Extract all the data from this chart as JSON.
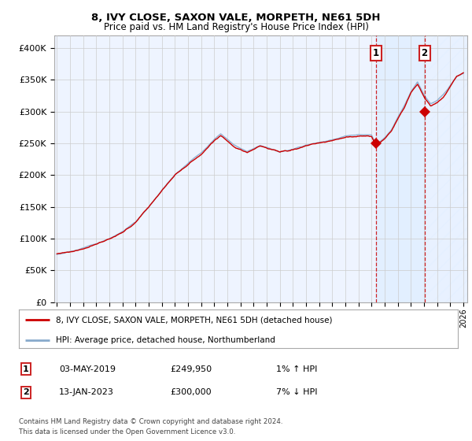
{
  "title": "8, IVY CLOSE, SAXON VALE, MORPETH, NE61 5DH",
  "subtitle": "Price paid vs. HM Land Registry's House Price Index (HPI)",
  "ylim": [
    0,
    420000
  ],
  "yticks": [
    0,
    50000,
    100000,
    150000,
    200000,
    250000,
    300000,
    350000,
    400000
  ],
  "ytick_labels": [
    "£0",
    "£50K",
    "£100K",
    "£150K",
    "£200K",
    "£250K",
    "£300K",
    "£350K",
    "£400K"
  ],
  "sale1_date": 2019.35,
  "sale1_price": 249950,
  "sale2_date": 2023.04,
  "sale2_price": 300000,
  "property_line_color": "#cc0000",
  "hpi_line_color": "#88aacc",
  "vline_color": "#cc0000",
  "shade_color": "#ddeeff",
  "grid_color": "#cccccc",
  "background_color": "#eef4ff",
  "legend1": "8, IVY CLOSE, SAXON VALE, MORPETH, NE61 5DH (detached house)",
  "legend2": "HPI: Average price, detached house, Northumberland",
  "footer1": "Contains HM Land Registry data © Crown copyright and database right 2024.",
  "footer2": "This data is licensed under the Open Government Licence v3.0.",
  "table_row1_date": "03-MAY-2019",
  "table_row1_price": "£249,950",
  "table_row1_hpi": "1% ↑ HPI",
  "table_row2_date": "13-JAN-2023",
  "table_row2_price": "£300,000",
  "table_row2_hpi": "7% ↓ HPI",
  "xstart": 1995,
  "xend": 2026
}
